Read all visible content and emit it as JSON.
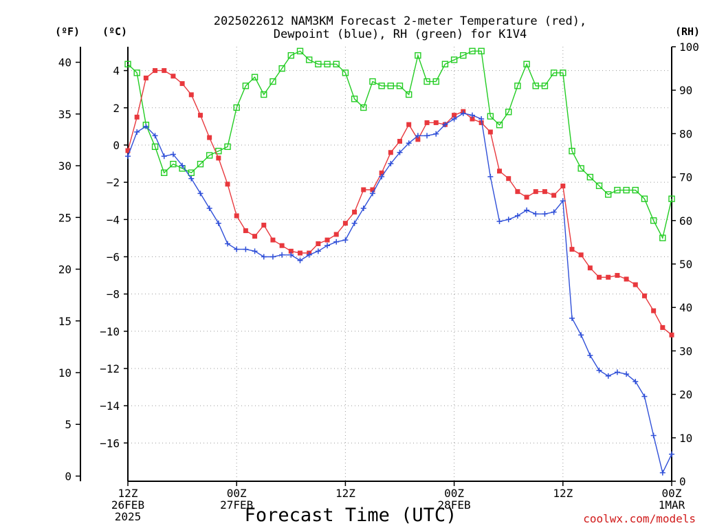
{
  "chart_data": {
    "type": "line",
    "title_line1": "2025022612 NAM3KM Forecast 2-meter Temperature (red),",
    "title_line2": "Dewpoint (blue), RH (green) for K1V4",
    "xlabel": "Forecast Time (UTC)",
    "credit": "coolwx.com/models",
    "units": {
      "fahrenheit": "(ºF)",
      "celsius": "(ºC)",
      "rh": "(RH)"
    },
    "x_ticks": [
      {
        "hour": 0,
        "l1": "12Z",
        "l2": "26FEB",
        "l3": "2025"
      },
      {
        "hour": 12,
        "l1": "00Z",
        "l2": "27FEB",
        "l3": ""
      },
      {
        "hour": 24,
        "l1": "12Z",
        "l2": "",
        "l3": ""
      },
      {
        "hour": 36,
        "l1": "00Z",
        "l2": "28FEB",
        "l3": ""
      },
      {
        "hour": 48,
        "l1": "12Z",
        "l2": "",
        "l3": ""
      },
      {
        "hour": 60,
        "l1": "00Z",
        "l2": "1MAR",
        "l3": ""
      }
    ],
    "x_range_hours": [
      0,
      60
    ],
    "y_left_f_range": [
      -0.5,
      41.5
    ],
    "y_left_f_ticks": [
      0,
      5,
      10,
      15,
      20,
      25,
      30,
      35,
      40
    ],
    "y_c_ticks": [
      -16,
      -14,
      -12,
      -10,
      -8,
      -6,
      -4,
      -2,
      0,
      2,
      4
    ],
    "y_right_rh_range": [
      0,
      100
    ],
    "y_right_rh_ticks": [
      0,
      10,
      20,
      30,
      40,
      50,
      60,
      70,
      80,
      90,
      100
    ],
    "grid": true,
    "series": [
      {
        "name": "Temperature",
        "color": "#e8383d",
        "marker": "filled-square",
        "axis": "celsius",
        "hours": [
          0,
          1,
          2,
          3,
          4,
          5,
          6,
          7,
          8,
          9,
          10,
          11,
          12,
          13,
          14,
          15,
          16,
          17,
          18,
          19,
          20,
          21,
          22,
          23,
          24,
          25,
          26,
          27,
          28,
          29,
          30,
          31,
          32,
          33,
          34,
          35,
          36,
          37,
          38,
          39,
          40,
          41,
          42,
          43,
          44,
          45,
          46,
          47,
          48,
          49,
          50,
          51,
          52,
          53,
          54,
          55,
          56,
          57,
          58,
          59,
          60
        ],
        "values": [
          -0.3,
          1.5,
          3.6,
          4.0,
          4.0,
          3.7,
          3.3,
          2.7,
          1.6,
          0.4,
          -0.7,
          -2.1,
          -3.8,
          -4.6,
          -4.9,
          -4.3,
          -5.1,
          -5.4,
          -5.7,
          -5.8,
          -5.8,
          -5.3,
          -5.1,
          -4.8,
          -4.2,
          -3.6,
          -2.4,
          -2.4,
          -1.5,
          -0.4,
          0.2,
          1.1,
          0.3,
          1.2,
          1.2,
          1.1,
          1.6,
          1.8,
          1.4,
          1.2,
          0.7,
          -1.4,
          -1.8,
          -2.5,
          -2.8,
          -2.5,
          -2.5,
          -2.7,
          -2.2,
          -5.6,
          -5.9,
          -6.6,
          -7.1,
          -7.1,
          -7.0,
          -7.2,
          -7.5,
          -8.1,
          -8.9,
          -9.8,
          -10.2
        ]
      },
      {
        "name": "Dewpoint",
        "color": "#2f4fd8",
        "marker": "plus",
        "axis": "celsius",
        "hours": [
          0,
          1,
          2,
          3,
          4,
          5,
          6,
          7,
          8,
          9,
          10,
          11,
          12,
          13,
          14,
          15,
          16,
          17,
          18,
          19,
          20,
          21,
          22,
          23,
          24,
          25,
          26,
          27,
          28,
          29,
          30,
          31,
          32,
          33,
          34,
          35,
          36,
          37,
          38,
          39,
          40,
          41,
          42,
          43,
          44,
          45,
          46,
          47,
          48,
          49,
          50,
          51,
          52,
          53,
          54,
          55,
          56,
          57,
          58,
          59,
          60
        ],
        "values": [
          -0.6,
          0.7,
          1.0,
          0.5,
          -0.6,
          -0.5,
          -1.1,
          -1.8,
          -2.6,
          -3.4,
          -4.2,
          -5.3,
          -5.6,
          -5.6,
          -5.7,
          -6.0,
          -6.0,
          -5.9,
          -5.9,
          -6.2,
          -5.9,
          -5.7,
          -5.4,
          -5.2,
          -5.1,
          -4.2,
          -3.4,
          -2.6,
          -1.7,
          -1.0,
          -0.4,
          0.1,
          0.5,
          0.5,
          0.6,
          1.1,
          1.4,
          1.7,
          1.6,
          1.4,
          -1.7,
          -4.1,
          -4.0,
          -3.8,
          -3.5,
          -3.7,
          -3.7,
          -3.6,
          -3.0,
          -9.3,
          -10.2,
          -11.3,
          -12.1,
          -12.4,
          -12.2,
          -12.3,
          -12.7,
          -13.5,
          -15.6,
          -17.6,
          -16.6
        ]
      },
      {
        "name": "RH",
        "color": "#22cc22",
        "marker": "open-square",
        "axis": "rh",
        "hours": [
          0,
          1,
          2,
          3,
          4,
          5,
          6,
          7,
          8,
          9,
          10,
          11,
          12,
          13,
          14,
          15,
          16,
          17,
          18,
          19,
          20,
          21,
          22,
          23,
          24,
          25,
          26,
          27,
          28,
          29,
          30,
          31,
          32,
          33,
          34,
          35,
          36,
          37,
          38,
          39,
          40,
          41,
          42,
          43,
          44,
          45,
          46,
          47,
          48,
          49,
          50,
          51,
          52,
          53,
          54,
          55,
          56,
          57,
          58,
          59,
          60
        ],
        "values": [
          96,
          94,
          82,
          77,
          71,
          73,
          72,
          71,
          73,
          75,
          76,
          77,
          86,
          91,
          93,
          89,
          92,
          95,
          98,
          99,
          97,
          96,
          96,
          96,
          94,
          88,
          86,
          92,
          91,
          91,
          91,
          89,
          98,
          92,
          92,
          96,
          97,
          98,
          99,
          99,
          84,
          82,
          85,
          91,
          96,
          91,
          91,
          94,
          94,
          76,
          72,
          70,
          68,
          66,
          67,
          67,
          67,
          65,
          60,
          56,
          65
        ]
      }
    ]
  }
}
